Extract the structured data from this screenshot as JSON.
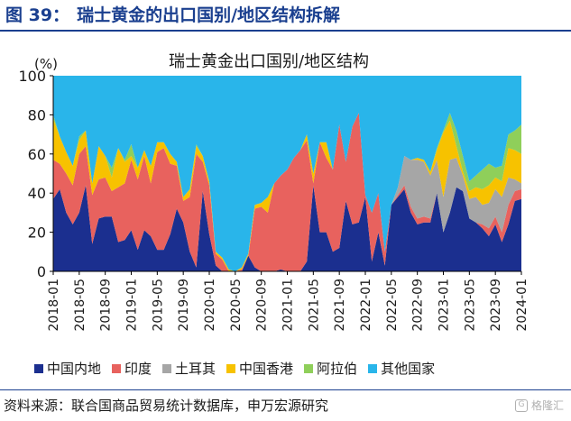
{
  "figure": {
    "label": "图 39：",
    "title": "瑞士黄金的出口国别/地区结构拆解"
  },
  "source": "资料来源：联合国商品贸易统计数据库，申万宏源研究",
  "watermark": "格隆汇",
  "chart_data": {
    "type": "area",
    "stacked": true,
    "title": "瑞士黄金出口国别/地区结构",
    "ylabel": "(%)",
    "ylim": [
      0,
      100
    ],
    "yticks": [
      0,
      20,
      40,
      60,
      80,
      100
    ],
    "grid": false,
    "legend_position": "bottom",
    "x": [
      "2018-01",
      "2018-02",
      "2018-03",
      "2018-04",
      "2018-05",
      "2018-06",
      "2018-07",
      "2018-08",
      "2018-09",
      "2018-10",
      "2018-11",
      "2018-12",
      "2019-01",
      "2019-02",
      "2019-03",
      "2019-04",
      "2019-05",
      "2019-06",
      "2019-07",
      "2019-08",
      "2019-09",
      "2019-10",
      "2019-11",
      "2019-12",
      "2020-01",
      "2020-02",
      "2020-03",
      "2020-04",
      "2020-05",
      "2020-06",
      "2020-07",
      "2020-08",
      "2020-09",
      "2020-10",
      "2020-11",
      "2020-12",
      "2021-01",
      "2021-02",
      "2021-03",
      "2021-04",
      "2021-05",
      "2021-06",
      "2021-07",
      "2021-08",
      "2021-09",
      "2021-10",
      "2021-11",
      "2021-12",
      "2022-01",
      "2022-02",
      "2022-03",
      "2022-04",
      "2022-05",
      "2022-06",
      "2022-07",
      "2022-08",
      "2022-09",
      "2022-10",
      "2022-11",
      "2022-12",
      "2023-01",
      "2023-02",
      "2023-03",
      "2023-04",
      "2023-05",
      "2023-06",
      "2023-07",
      "2023-08",
      "2023-09",
      "2023-10",
      "2023-11",
      "2023-12",
      "2024-01"
    ],
    "xtick_labels": [
      "2018-01",
      "2018-05",
      "2018-09",
      "2019-01",
      "2019-05",
      "2019-09",
      "2020-01",
      "2020-05",
      "2020-09",
      "2021-01",
      "2021-05",
      "2021-09",
      "2022-01",
      "2022-05",
      "2022-09",
      "2023-01",
      "2023-05",
      "2023-09",
      "2024-01"
    ],
    "series": [
      {
        "name": "中国内地",
        "color": "#1b2f8f",
        "values": [
          37,
          42,
          30,
          24,
          30,
          44,
          14,
          27,
          28,
          28,
          15,
          16,
          21,
          11,
          21,
          18,
          11,
          11,
          19,
          32,
          25,
          10,
          2,
          41,
          19,
          3,
          0,
          0,
          0,
          0,
          8,
          2,
          0,
          0,
          0,
          1,
          0,
          0,
          0,
          5,
          44,
          20,
          20,
          10,
          12,
          36,
          24,
          25,
          38,
          5,
          20,
          3,
          34,
          38,
          42,
          30,
          24,
          25,
          25,
          40,
          20,
          30,
          43,
          41,
          27,
          25,
          22,
          18,
          24,
          15,
          24,
          36,
          37
        ]
      },
      {
        "name": "印度",
        "color": "#e8625e",
        "values": [
          20,
          13,
          20,
          20,
          30,
          20,
          25,
          20,
          20,
          13,
          28,
          29,
          36,
          36,
          38,
          27,
          50,
          52,
          36,
          22,
          11,
          28,
          58,
          15,
          25,
          6,
          6,
          0,
          0,
          1,
          0,
          30,
          33,
          30,
          45,
          48,
          52,
          58,
          62,
          62,
          1,
          46,
          38,
          42,
          63,
          20,
          50,
          56,
          1,
          25,
          20,
          7,
          0,
          1,
          2,
          3,
          3,
          3,
          2,
          0,
          0,
          0,
          0,
          0,
          0,
          0,
          2,
          4,
          4,
          5,
          10,
          5,
          5
        ]
      },
      {
        "name": "土耳其",
        "color": "#a6a6a6",
        "values": [
          0,
          0,
          0,
          0,
          0,
          0,
          0,
          0,
          0,
          0,
          0,
          0,
          0,
          0,
          0,
          0,
          0,
          0,
          0,
          0,
          0,
          0,
          0,
          0,
          0,
          0,
          0,
          0,
          0,
          0,
          0,
          0,
          0,
          0,
          0,
          0,
          0,
          0,
          0,
          0,
          0,
          0,
          0,
          0,
          0,
          0,
          0,
          0,
          0,
          0,
          0,
          0,
          0,
          4,
          15,
          24,
          30,
          28,
          22,
          17,
          18,
          27,
          15,
          8,
          10,
          13,
          10,
          13,
          14,
          18,
          14,
          6,
          3
        ]
      },
      {
        "name": "中国香港",
        "color": "#f7c200",
        "values": [
          21,
          14,
          11,
          10,
          7,
          8,
          6,
          17,
          11,
          7,
          20,
          11,
          2,
          6,
          3,
          9,
          5,
          3,
          5,
          2,
          2,
          4,
          4,
          3,
          2,
          1,
          1,
          1,
          0,
          1,
          1,
          2,
          2,
          8,
          0,
          0,
          0,
          0,
          0,
          3,
          5,
          0,
          8,
          0,
          0,
          0,
          0,
          0,
          0,
          0,
          0,
          0,
          0,
          0,
          0,
          0,
          1,
          1,
          2,
          5,
          33,
          20,
          6,
          2,
          4,
          5,
          8,
          9,
          6,
          8,
          15,
          15,
          15
        ]
      },
      {
        "name": "阿拉伯",
        "color": "#8fcf5a",
        "values": [
          2,
          0,
          0,
          0,
          2,
          0,
          0,
          0,
          0,
          5,
          0,
          1,
          6,
          0,
          0,
          0,
          0,
          0,
          0,
          0,
          0,
          0,
          1,
          0,
          0,
          0,
          0,
          0,
          0,
          0,
          0,
          0,
          0,
          0,
          0,
          0,
          0,
          0,
          0,
          0,
          0,
          0,
          0,
          0,
          0,
          0,
          0,
          0,
          0,
          0,
          0,
          0,
          0,
          0,
          0,
          0,
          0,
          0,
          0,
          1,
          1,
          4,
          8,
          8,
          5,
          6,
          10,
          11,
          5,
          8,
          7,
          10,
          15
        ]
      },
      {
        "name": "其他国家",
        "color": "#29b5ea",
        "values": [
          20,
          31,
          39,
          46,
          31,
          28,
          55,
          36,
          41,
          47,
          37,
          43,
          35,
          47,
          38,
          46,
          34,
          34,
          40,
          44,
          62,
          58,
          35,
          41,
          54,
          90,
          93,
          99,
          100,
          98,
          91,
          66,
          65,
          62,
          55,
          51,
          48,
          42,
          38,
          30,
          50,
          34,
          34,
          48,
          25,
          44,
          26,
          19,
          61,
          70,
          60,
          90,
          66,
          57,
          41,
          43,
          42,
          43,
          49,
          37,
          28,
          19,
          28,
          41,
          54,
          51,
          48,
          45,
          47,
          46,
          30,
          28,
          25
        ]
      }
    ]
  }
}
